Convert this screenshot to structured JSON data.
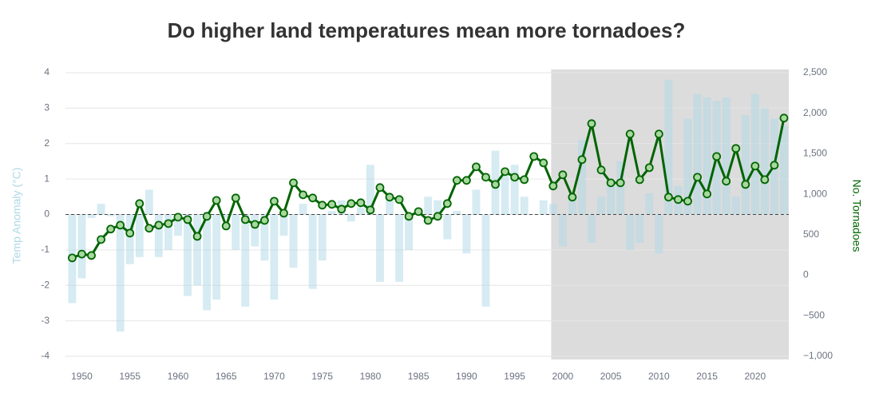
{
  "chart_data": {
    "type": "bar-line",
    "title": "Do higher land temperatures mean more tornadoes?",
    "y_label": "Temp Anomaly (°C)",
    "y2_label": "No. Tornadoes",
    "x": [
      1949,
      1950,
      1951,
      1952,
      1953,
      1954,
      1955,
      1956,
      1957,
      1958,
      1959,
      1960,
      1961,
      1962,
      1963,
      1964,
      1965,
      1966,
      1967,
      1968,
      1969,
      1970,
      1971,
      1972,
      1973,
      1974,
      1975,
      1976,
      1977,
      1978,
      1979,
      1980,
      1981,
      1982,
      1983,
      1984,
      1985,
      1986,
      1987,
      1988,
      1989,
      1990,
      1991,
      1992,
      1993,
      1994,
      1995,
      1996,
      1997,
      1998,
      1999,
      2000,
      2001,
      2002,
      2003,
      2004,
      2005,
      2006,
      2007,
      2008,
      2009,
      2010,
      2011,
      2012,
      2013,
      2014,
      2015,
      2016,
      2017,
      2018,
      2019,
      2020,
      2021,
      2022,
      2023
    ],
    "xlim": [
      1948.3,
      2023.5
    ],
    "xticks": [
      1950,
      1955,
      1960,
      1965,
      1970,
      1975,
      1980,
      1985,
      1990,
      1995,
      2000,
      2005,
      2010,
      2015,
      2020
    ],
    "ylim": [
      -4,
      4
    ],
    "yticks": [
      -4,
      -3,
      -2,
      -1,
      0,
      1,
      2,
      3,
      4
    ],
    "y2lim": [
      -1000,
      2500
    ],
    "y2ticks": [
      {
        "value": -1000,
        "label": "−1,000"
      },
      {
        "value": -500,
        "label": "−500"
      },
      0,
      500,
      {
        "value": 1000,
        "label": "1,000"
      },
      {
        "value": 1500,
        "label": "1,500"
      },
      {
        "value": 2000,
        "label": "2,000"
      },
      {
        "value": 2500,
        "label": "2,500"
      }
    ],
    "grid": true,
    "shade_from": 1998.8,
    "series": [
      {
        "name": "Temp Anomaly (°C)",
        "kind": "bar",
        "color": "#add8e6",
        "values": [
          -2.5,
          -1.8,
          -0.1,
          0.3,
          -0.05,
          -3.3,
          -1.4,
          -1.2,
          0.7,
          -1.2,
          -1.0,
          -0.6,
          -2.3,
          -2.0,
          -2.7,
          -2.4,
          -0.1,
          -1.0,
          -2.6,
          -0.9,
          -1.3,
          -2.4,
          -0.6,
          -1.5,
          0.3,
          -2.1,
          -1.3,
          0.1,
          0.4,
          -0.2,
          0.2,
          1.4,
          -1.9,
          0.4,
          -1.9,
          -1.0,
          0.1,
          0.5,
          0.4,
          -0.7,
          0.1,
          -1.1,
          0.7,
          -2.6,
          1.8,
          1.2,
          1.4,
          0.5,
          0.0,
          0.4,
          0.3,
          -0.9,
          0.5,
          2.1,
          -0.8,
          0.5,
          0.9,
          1.5,
          -1.0,
          -0.8,
          0.6,
          -1.1,
          3.8,
          0.8,
          2.7,
          3.4,
          3.3,
          3.2,
          3.3,
          0.5,
          2.8,
          3.4,
          3.0,
          2.7,
          2.5
        ]
      },
      {
        "name": "No. Tornadoes",
        "kind": "line",
        "axis": "y2",
        "color": "#006400",
        "values": [
          214,
          261,
          244,
          441,
          570,
          618,
          520,
          885,
          580,
          618,
          638,
          717,
          687,
          480,
          727,
          924,
          608,
          954,
          687,
          628,
          677,
          914,
          766,
          1141,
          993,
          954,
          865,
          875,
          816,
          885,
          895,
          806,
          1082,
          964,
          934,
          727,
          786,
          677,
          727,
          885,
          1171,
          1171,
          1338,
          1210,
          1121,
          1279,
          1210,
          1180,
          1466,
          1387,
          1102,
          1240,
          964,
          1427,
          1871,
          1299,
          1141,
          1141,
          1743,
          1180,
          1328,
          1743,
          964,
          934,
          914,
          1210,
          1003,
          1466,
          1161,
          1565,
          1121,
          1348,
          1180,
          1358,
          1940
        ]
      }
    ]
  }
}
